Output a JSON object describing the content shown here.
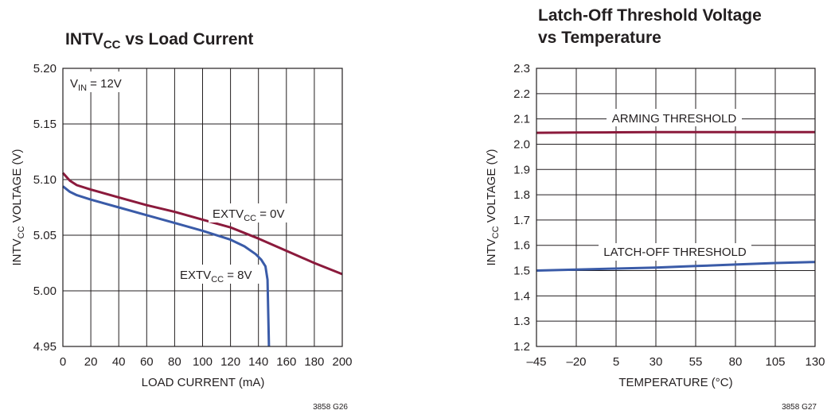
{
  "charts_text": {
    "left": {
      "title_main": "INTV",
      "title_sub": "CC",
      "title_rest": " vs Load Current",
      "ylabel_main": "INTV",
      "ylabel_sub": "CC",
      "ylabel_rest": " VOLTAGE (V)",
      "xlabel": "LOAD CURRENT (mA)",
      "note_main": "V",
      "note_sub": "IN",
      "note_rest": " = 12V",
      "series1_main": "EXTV",
      "series1_sub": "CC",
      "series1_rest": " = 0V",
      "series2_main": "EXTV",
      "series2_sub": "CC",
      "series2_rest": " = 8V",
      "code": "3858 G26"
    },
    "right": {
      "title_line1": "Latch-Off Threshold Voltage",
      "title_line2": "vs Temperature",
      "ylabel_main": "INTV",
      "ylabel_sub": "CC",
      "ylabel_rest": " VOLTAGE (V)",
      "xlabel": "TEMPERATURE (°C)",
      "series1": "ARMING THRESHOLD",
      "series2": "LATCH-OFF THRESHOLD",
      "code": "3858 G27"
    }
  },
  "chart_data": [
    {
      "type": "line",
      "title": "INTVCC vs Load Current",
      "xlabel": "LOAD CURRENT (mA)",
      "ylabel": "INTVCC VOLTAGE (V)",
      "xlim": [
        0,
        200
      ],
      "ylim": [
        4.95,
        5.2
      ],
      "xticks": [
        "0",
        "20",
        "40",
        "60",
        "80",
        "100",
        "120",
        "140",
        "160",
        "180",
        "200"
      ],
      "yticks": [
        "4.95",
        "5.00",
        "5.05",
        "5.10",
        "5.15",
        "5.20"
      ],
      "grid": true,
      "series": [
        {
          "name": "EXTVCC = 0V",
          "color": "#8b1a3c",
          "x": [
            0,
            5,
            10,
            20,
            40,
            60,
            80,
            100,
            120,
            140,
            160,
            180,
            200
          ],
          "y": [
            5.106,
            5.099,
            5.095,
            5.091,
            5.084,
            5.077,
            5.071,
            5.064,
            5.057,
            5.047,
            5.036,
            5.025,
            5.015
          ]
        },
        {
          "name": "EXTVCC = 8V",
          "color": "#3a5ba8",
          "x": [
            0,
            5,
            10,
            20,
            40,
            60,
            80,
            100,
            120,
            130,
            138,
            142,
            145,
            146.5,
            147,
            147.5
          ],
          "y": [
            5.094,
            5.089,
            5.086,
            5.082,
            5.075,
            5.068,
            5.061,
            5.054,
            5.046,
            5.04,
            5.033,
            5.028,
            5.022,
            5.01,
            4.98,
            4.95
          ]
        }
      ]
    },
    {
      "type": "line",
      "title": "Latch-Off Threshold Voltage vs Temperature",
      "xlabel": "TEMPERATURE (°C)",
      "ylabel": "INTVCC VOLTAGE (V)",
      "xlim": [
        -45,
        130
      ],
      "ylim": [
        1.2,
        2.3
      ],
      "xticks": [
        "–45",
        "–20",
        "5",
        "30",
        "55",
        "80",
        "105",
        "130"
      ],
      "yticks": [
        "1.2",
        "1.3",
        "1.4",
        "1.5",
        "1.6",
        "1.7",
        "1.8",
        "1.9",
        "2.0",
        "2.1",
        "2.2",
        "2.3"
      ],
      "grid": true,
      "series": [
        {
          "name": "ARMING THRESHOLD",
          "color": "#8b1a3c",
          "x": [
            -45,
            -20,
            5,
            30,
            55,
            80,
            105,
            130
          ],
          "y": [
            2.045,
            2.046,
            2.047,
            2.048,
            2.048,
            2.048,
            2.048,
            2.048
          ]
        },
        {
          "name": "LATCH-OFF THRESHOLD",
          "color": "#3a5ba8",
          "x": [
            -45,
            -20,
            5,
            30,
            55,
            80,
            105,
            130
          ],
          "y": [
            1.5,
            1.504,
            1.508,
            1.512,
            1.518,
            1.524,
            1.53,
            1.534
          ]
        }
      ]
    }
  ]
}
